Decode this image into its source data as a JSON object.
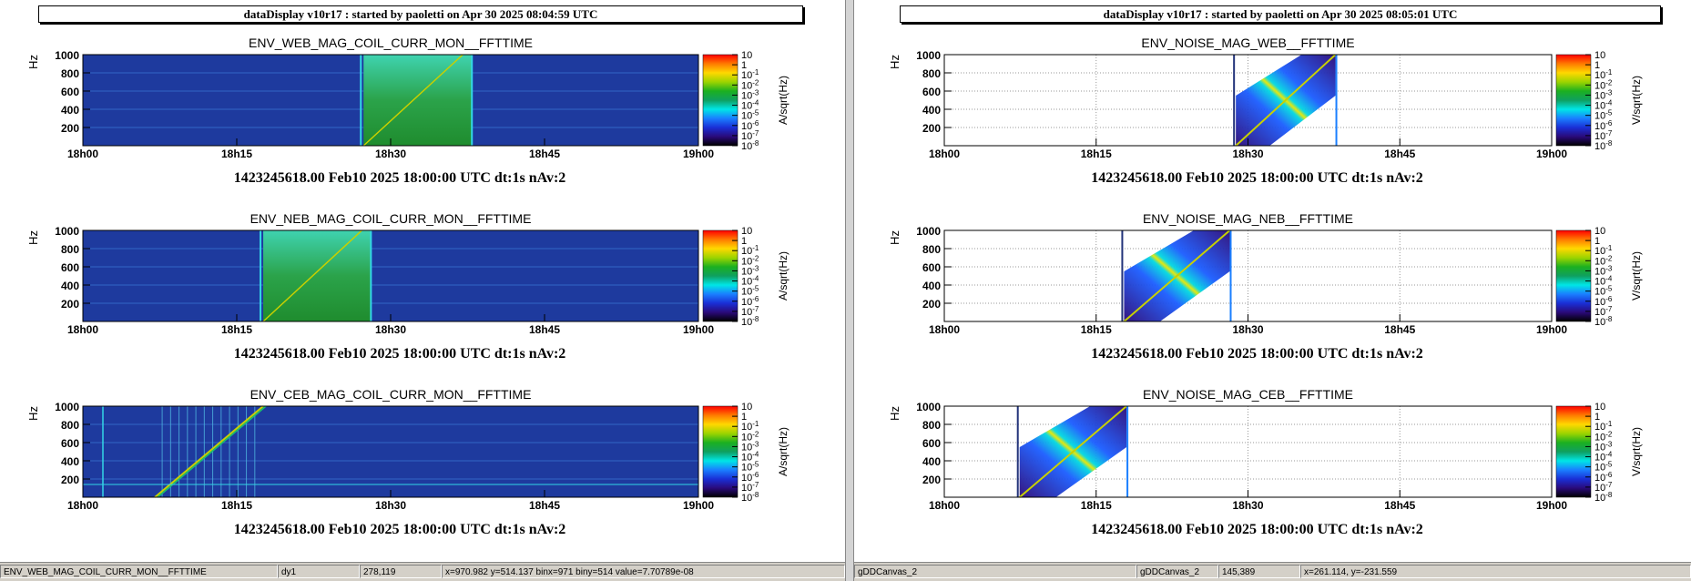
{
  "left": {
    "title": "dataDisplay v10r17 : started by paoletti on Apr 30 2025 08:04:59 UTC",
    "plots": [
      {
        "title": "ENV_WEB_MAG_COIL_CURR_MON__FFTTIME",
        "footer": "1423245618.00 Feb10 2025 18:00:00 UTC dt:1s nAv:2",
        "unit": "A/sqrt(Hz)"
      },
      {
        "title": "ENV_NEB_MAG_COIL_CURR_MON__FFTTIME",
        "footer": "1423245618.00 Feb10 2025 18:00:00 UTC dt:1s nAv:2",
        "unit": "A/sqrt(Hz)"
      },
      {
        "title": "ENV_CEB_MAG_COIL_CURR_MON__FFTTIME",
        "footer": "1423245618.00 Feb10 2025 18:00:00 UTC dt:1s nAv:2",
        "unit": "A/sqrt(Hz)"
      }
    ],
    "status": [
      "ENV_WEB_MAG_COIL_CURR_MON__FFTTIME",
      "dy1",
      "278,119",
      "x=970.982 y=514.137 binx=971 biny=514 value=7.70789e-08"
    ]
  },
  "right": {
    "title": "dataDisplay v10r17 : started by paoletti on Apr 30 2025 08:05:01 UTC",
    "plots": [
      {
        "title": "ENV_NOISE_MAG_WEB__FFTTIME",
        "footer": "1423245618.00 Feb10 2025 18:00:00 UTC dt:1s nAv:2",
        "unit": "V/sqrt(Hz)"
      },
      {
        "title": "ENV_NOISE_MAG_NEB__FFTTIME",
        "footer": "1423245618.00 Feb10 2025 18:00:00 UTC dt:1s nAv:2",
        "unit": "V/sqrt(Hz)"
      },
      {
        "title": "ENV_NOISE_MAG_CEB__FFTTIME",
        "footer": "1423245618.00 Feb10 2025 18:00:00 UTC dt:1s nAv:2",
        "unit": "V/sqrt(Hz)"
      }
    ],
    "status": [
      "gDDCanvas_2",
      "gDDCanvas_2",
      "145,389",
      "x=261.114, y=-231.559"
    ]
  },
  "axes": {
    "ylabel": "Hz",
    "yticks": [
      "1000",
      "800",
      "600",
      "400",
      "200"
    ],
    "xticks": [
      "18h00",
      "18h15",
      "18h30",
      "18h45",
      "19h00"
    ],
    "colorbar_labels": [
      {
        "base": "10",
        "exp": ""
      },
      {
        "base": "1",
        "exp": ""
      },
      {
        "base": "10",
        "exp": "-1"
      },
      {
        "base": "10",
        "exp": "-2"
      },
      {
        "base": "10",
        "exp": "-3"
      },
      {
        "base": "10",
        "exp": "-4"
      },
      {
        "base": "10",
        "exp": "-5"
      },
      {
        "base": "10",
        "exp": "-6"
      },
      {
        "base": "10",
        "exp": "-7"
      },
      {
        "base": "10",
        "exp": "-8"
      }
    ]
  },
  "colors": {
    "plot_blue": "#1e3a9e",
    "sweep_green": "#2e9e3c",
    "cyan_edge": "#33d6e6",
    "window_bg": "#ffffff"
  }
}
